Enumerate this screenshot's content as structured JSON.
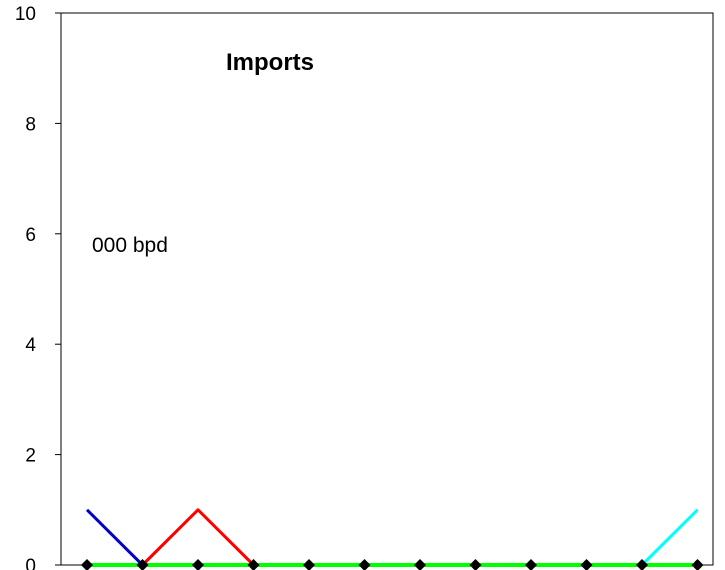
{
  "chart_data": {
    "type": "line",
    "title": "Imports",
    "annotation": "000 bpd",
    "xlabel": "",
    "ylabel": "",
    "ylim": [
      0,
      10
    ],
    "yticks": [
      "0",
      "2",
      "4",
      "6",
      "8",
      "10"
    ],
    "x": [
      1,
      2,
      3,
      4,
      5,
      6,
      7,
      8,
      9,
      10,
      11,
      12
    ],
    "grid": false,
    "legend": "none",
    "series": [
      {
        "color": "#0000cc",
        "values": [
          1,
          0,
          null,
          null,
          null,
          null,
          null,
          null,
          null,
          null,
          null,
          null
        ]
      },
      {
        "color": "#ff0000",
        "values": [
          null,
          0,
          1,
          0,
          null,
          null,
          null,
          null,
          null,
          null,
          null,
          null
        ]
      },
      {
        "color": "#00ffff",
        "values": [
          null,
          null,
          null,
          null,
          null,
          null,
          null,
          null,
          null,
          null,
          0,
          1
        ]
      },
      {
        "color": "#00ff00",
        "values": [
          0,
          0,
          0,
          0,
          0,
          0,
          0,
          0,
          0,
          0,
          0,
          0
        ]
      },
      {
        "color": "#000000",
        "marker": "diamond",
        "values": [
          0,
          0,
          0,
          0,
          0,
          0,
          0,
          0,
          0,
          0,
          0,
          0
        ]
      }
    ]
  }
}
